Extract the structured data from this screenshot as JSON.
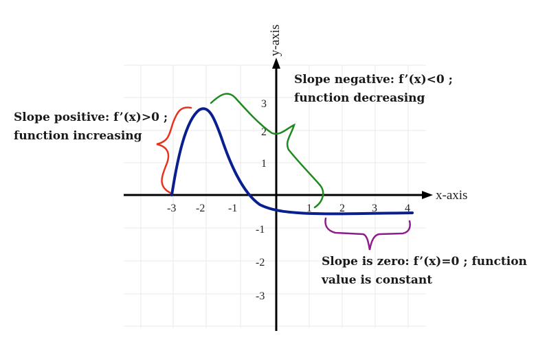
{
  "axes": {
    "x_label": "x-axis",
    "y_label": "y-axis",
    "x_ticks": [
      "-3",
      "-2",
      "-1",
      "1",
      "2",
      "3",
      "4"
    ],
    "y_ticks_pos": [
      "3",
      "2",
      "1"
    ],
    "y_ticks_neg": [
      "-1",
      "-2",
      "-3"
    ]
  },
  "annotations": {
    "increasing": {
      "line1": "Slope positive: f’(x)>0 ;",
      "line2": "function increasing"
    },
    "decreasing": {
      "line1": "Slope negative: f’(x)<0 ;",
      "line2": "function decreasing"
    },
    "constant": {
      "line1": "Slope is zero: f’(x)=0 ; function",
      "line2": "value is constant"
    }
  },
  "colors": {
    "curve": "#0a1f8f",
    "increasing_brace": "#e8321e",
    "decreasing_brace": "#1d8a1d",
    "constant_brace": "#8e1b8e",
    "axis": "#000000",
    "grid": "#e8e8e8"
  }
}
